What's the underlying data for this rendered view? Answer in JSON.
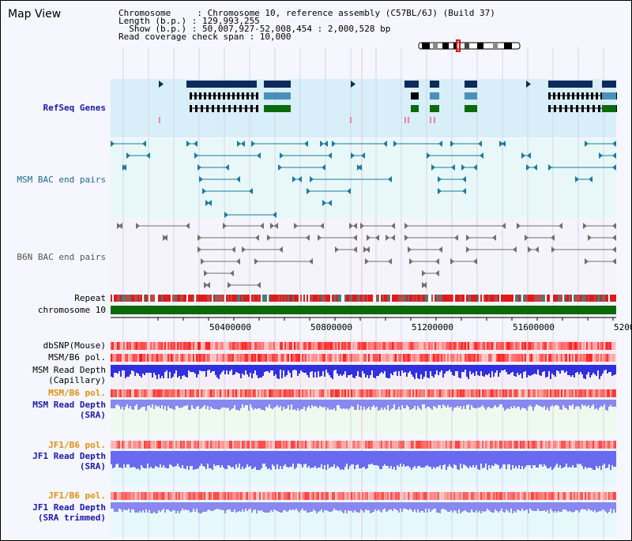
{
  "window": {
    "title": "Map View"
  },
  "info": {
    "chromosome": "Chromosome     : Chromosome 10, reference assembly (C57BL/6J) (Build 37)",
    "length": "Length (b.p.) : 129,993,255",
    "show": "  Show (b.p.) : 50,007,927-52,008,454 : 2,000,528 bp",
    "span": "Read coverage check span : 10,000"
  },
  "tracks": {
    "refseq": "RefSeq Genes",
    "msm_bac": "MSM BAC end pairs",
    "b6n_bac": "B6N BAC end pairs",
    "repeat": "Repeat",
    "chromosome": "chromosome 10",
    "dbsnp": "dbSNP(Mouse)",
    "msm_b6_pol_1": "MSM/B6 pol.",
    "msm_depth_cap_1": "MSM Read Depth",
    "msm_depth_cap_2": "(Capillary)",
    "msm_b6_pol_2": "MSM/B6 pol.",
    "msm_depth_sra_1": "MSM Read Depth",
    "msm_depth_sra_2": "(SRA)",
    "jf1_b6_pol_1": "JF1/B6 pol.",
    "jf1_depth_sra_1": "JF1 Read Depth",
    "jf1_depth_sra_2": "(SRA)",
    "jf1_b6_pol_2": "JF1/B6 pol.",
    "jf1_depth_trim_1": "JF1 Read Depth",
    "jf1_depth_trim_2": "(SRA trimmed)"
  },
  "axis": {
    "ticks": [
      "50400000",
      "50800000",
      "51200000",
      "51600000",
      "5200"
    ]
  },
  "colors": {
    "refseq_bg": "#d8eef8",
    "msm_bac_bg": "#e8f8f8",
    "b6n_bac_bg": "#f4f4fa",
    "gene_navy": "#0e2a5a",
    "gene_steel": "#4a90b8",
    "gene_green": "#0a6a0a",
    "msm_line": "#1a7aa0",
    "b6n_line": "#707070",
    "chrom_green": "#0a6a0a",
    "depth_blue": "#3030e0",
    "depth_light": "#8888f0"
  }
}
